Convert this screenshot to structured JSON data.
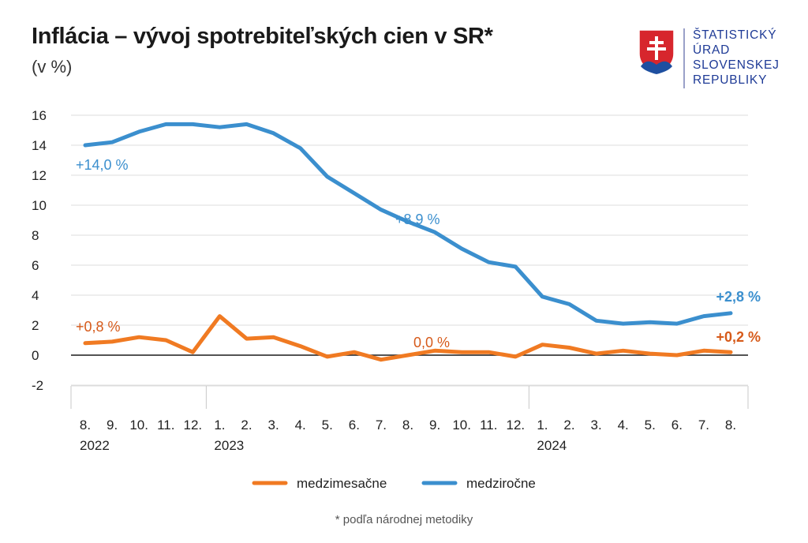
{
  "header": {
    "title": "Inflácia – vývoj spotrebiteľských cien v SR*",
    "subtitle": "(v %)"
  },
  "logo": {
    "lines": [
      "ŠTATISTICKÝ",
      "ÚRAD",
      "SLOVENSKEJ",
      "REPUBLIKY"
    ],
    "icon": "slovak-coat-of-arms-icon",
    "color": "#1e3a96"
  },
  "footnote": "* podľa národnej metodiky",
  "chart_data": {
    "type": "line",
    "title": "Inflácia – vývoj spotrebiteľských cien v SR*",
    "subtitle": "(v %)",
    "xlabel": "",
    "ylabel": "",
    "ylim": [
      -2,
      16
    ],
    "yticks": [
      -2,
      0,
      2,
      4,
      6,
      8,
      10,
      12,
      14,
      16
    ],
    "grid": true,
    "legend_position": "bottom",
    "categories": [
      "8.",
      "9.",
      "10.",
      "11.",
      "12.",
      "1.",
      "2.",
      "3.",
      "4.",
      "5.",
      "6.",
      "7.",
      "8.",
      "9.",
      "10.",
      "11.",
      "12.",
      "1.",
      "2.",
      "3.",
      "4.",
      "5.",
      "6.",
      "7.",
      "8."
    ],
    "year_labels": [
      {
        "label": "2022",
        "index": 0
      },
      {
        "label": "2023",
        "index": 5
      },
      {
        "label": "2024",
        "index": 17
      }
    ],
    "series": [
      {
        "name": "medzimesačne",
        "color": "#f07a22",
        "values": [
          0.8,
          0.9,
          1.2,
          1.0,
          0.2,
          2.6,
          1.1,
          1.2,
          0.6,
          -0.1,
          0.2,
          -0.3,
          0.0,
          0.3,
          0.2,
          0.2,
          -0.1,
          0.7,
          0.5,
          0.1,
          0.3,
          0.1,
          0.0,
          0.3,
          0.2
        ]
      },
      {
        "name": "medziročne",
        "color": "#3b8fce",
        "values": [
          14.0,
          14.2,
          14.9,
          15.4,
          15.4,
          15.2,
          15.4,
          14.8,
          13.8,
          11.9,
          10.8,
          9.7,
          8.9,
          8.2,
          7.1,
          6.2,
          5.9,
          3.9,
          3.4,
          2.3,
          2.1,
          2.2,
          2.1,
          2.6,
          2.8
        ]
      }
    ],
    "annotations": [
      {
        "text": "+14,0 %",
        "series": "medziročne",
        "index": 0,
        "color": "#3b8fce",
        "bold": false
      },
      {
        "text": "+8,9 %",
        "series": "medziročne",
        "index": 12,
        "color": "#3b8fce",
        "bold": false
      },
      {
        "text": "+2,8 %",
        "series": "medziročne",
        "index": 24,
        "color": "#3b8fce",
        "bold": true
      },
      {
        "text": "+0,8 %",
        "series": "medzimesačne",
        "index": 0,
        "color": "#d65a1a",
        "bold": false
      },
      {
        "text": "0,0 %",
        "series": "medzimesačne",
        "index": 12,
        "color": "#d65a1a",
        "bold": false
      },
      {
        "text": "+0,2 %",
        "series": "medzimesačne",
        "index": 24,
        "color": "#d65a1a",
        "bold": true
      }
    ]
  }
}
